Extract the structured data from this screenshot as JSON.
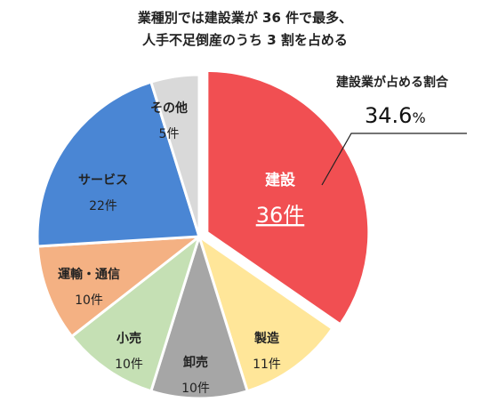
{
  "title": {
    "line1": "業種別では建設業が 36 件で最多、",
    "line2": "人手不足倒産のうち 3 割を占める"
  },
  "callout": {
    "label": "建設業が占める割合",
    "value": "34.6",
    "unit": "%"
  },
  "chart_data": {
    "type": "pie",
    "total": 104,
    "slices": [
      {
        "name": "建設",
        "value": 36,
        "value_label": "36件",
        "color": "#f14f52",
        "highlight": true
      },
      {
        "name": "製造",
        "value": 11,
        "value_label": "11件",
        "color": "#ffe699"
      },
      {
        "name": "卸売",
        "value": 10,
        "value_label": "10件",
        "color": "#a6a6a6"
      },
      {
        "name": "小売",
        "value": 10,
        "value_label": "10件",
        "color": "#c5e0b4"
      },
      {
        "name": "運輸・通信",
        "value": 10,
        "value_label": "10件",
        "color": "#f4b183"
      },
      {
        "name": "サービス",
        "value": 22,
        "value_label": "22件",
        "color": "#4a86d4"
      },
      {
        "name": "その他",
        "value": 5,
        "value_label": "5件",
        "color": "#d9d9d9"
      }
    ]
  }
}
